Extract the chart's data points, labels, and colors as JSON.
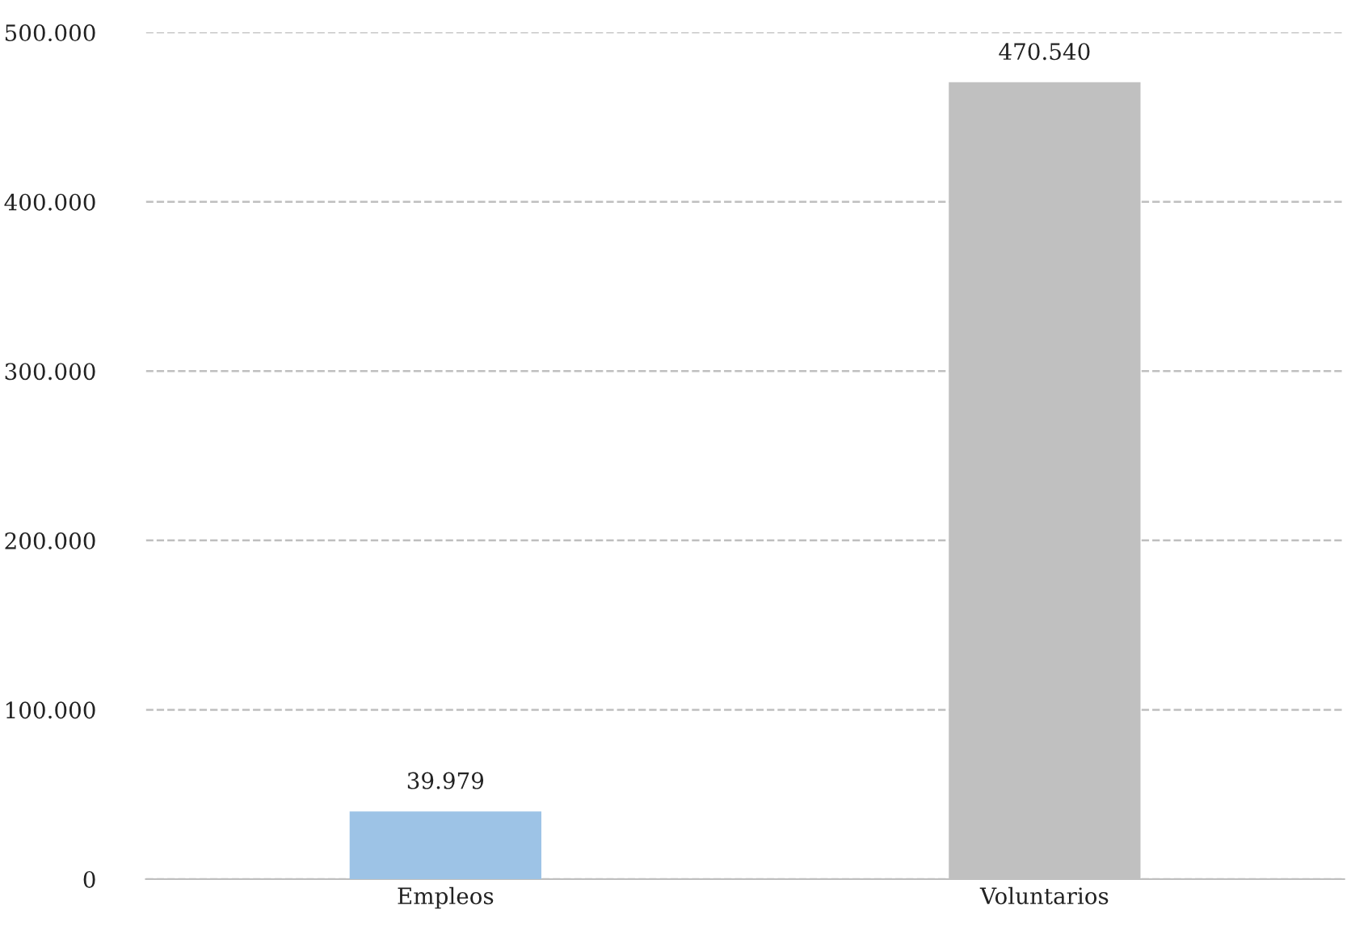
{
  "chart_data": {
    "type": "bar",
    "categories": [
      "Empleos",
      "Voluntarios"
    ],
    "values": [
      39979,
      470540
    ],
    "colors": [
      "#9dc3e6",
      "#c0c0c0"
    ],
    "value_labels": [
      "39.979",
      "470.540"
    ],
    "ylim": [
      0,
      500000
    ],
    "yticks": [
      {
        "value": 0,
        "label": "0"
      },
      {
        "value": 100000,
        "label": "100.000"
      },
      {
        "value": 200000,
        "label": "200.000"
      },
      {
        "value": 300000,
        "label": "300.000"
      },
      {
        "value": 400000,
        "label": "400.000"
      },
      {
        "value": 500000,
        "label": "500.000"
      }
    ],
    "grid": "y",
    "line_style": "dashed",
    "legend": false
  }
}
